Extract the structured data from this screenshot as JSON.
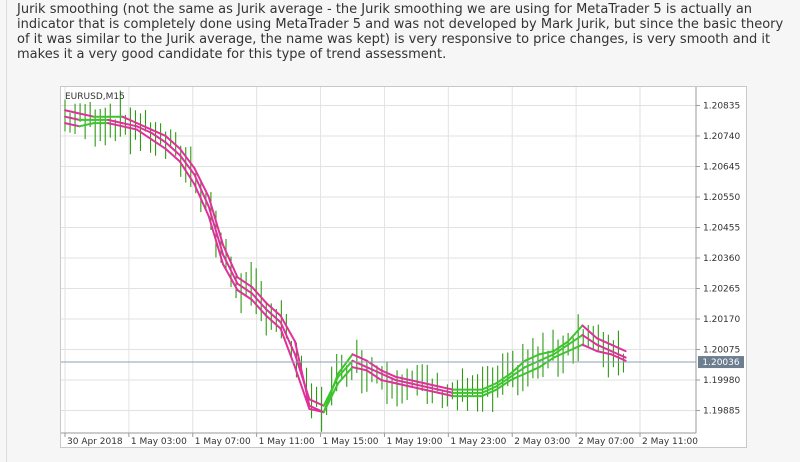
{
  "article": {
    "paragraph": "Jurik smoothing (not the same as Jurik average - the Jurik smoothing we are using for MetaTrader 5 is actually an indicator that is completely done using MetaTrader 5 and was not developed by Mark Jurik, but since the basic theory of it was similar to the Jurik average, the name was kept) is very responsive to price changes, is very smooth and it makes it a very good candidate for this type of trend assessment."
  },
  "chart_data": {
    "type": "line",
    "title": "EURUSD,M15",
    "price_axis": {
      "ticks": [
        "1.20835",
        "1.20740",
        "1.20645",
        "1.20550",
        "1.20455",
        "1.20360",
        "1.20265",
        "1.20170",
        "1.20075",
        "1.19980",
        "1.19885"
      ],
      "ylim": [
        1.1984,
        1.2088
      ]
    },
    "time_axis": {
      "ticks": [
        "30 Apr 2018",
        "1 May 03:00",
        "1 May 07:00",
        "1 May 11:00",
        "1 May 15:00",
        "1 May 19:00",
        "1 May 23:00",
        "2 May 03:00",
        "2 May 07:00",
        "2 May 11:00"
      ]
    },
    "current_price": "1.20036",
    "colors": {
      "bars": "#2e9a14",
      "band_up": "#e0309a",
      "band_down": "#3dc42e",
      "current_line": "#8fa0b0",
      "price_box": "#6c7e90",
      "grid": "#e2e2e2"
    },
    "series": [
      {
        "x": [
          0,
          4,
          8,
          12,
          16,
          20,
          24,
          28,
          32,
          36,
          40,
          44,
          48,
          52,
          56,
          60,
          64,
          68,
          72,
          76,
          80,
          84,
          88,
          92,
          96,
          100,
          104,
          108,
          112,
          116,
          120,
          124,
          128,
          132,
          136,
          140,
          144,
          148,
          152,
          156
        ],
        "y": [
          1.2082,
          1.2081,
          1.208,
          1.208,
          1.208,
          1.2078,
          1.2076,
          1.2074,
          1.207,
          1.2064,
          1.2055,
          1.204,
          1.203,
          1.2027,
          1.2022,
          1.2018,
          1.201,
          1.199,
          1.1988,
          1.2,
          1.2006,
          1.2004,
          1.2001,
          1.1999,
          1.1998,
          1.1997,
          1.1996,
          1.1995,
          1.1995,
          1.1995,
          1.1997,
          1.2,
          1.2004,
          1.2006,
          1.2007,
          1.201,
          1.2015,
          1.2011,
          1.2009,
          1.2007
        ]
      },
      {
        "x": [
          0,
          4,
          8,
          12,
          16,
          20,
          24,
          28,
          32,
          36,
          40,
          44,
          48,
          52,
          56,
          60,
          64,
          68,
          72,
          76,
          80,
          84,
          88,
          92,
          96,
          100,
          104,
          108,
          112,
          116,
          120,
          124,
          128,
          132,
          136,
          140,
          144,
          148,
          152,
          156
        ],
        "y": [
          1.208,
          1.2079,
          1.2079,
          1.2079,
          1.2078,
          1.2077,
          1.2075,
          1.2072,
          1.2068,
          1.2062,
          1.2052,
          1.2037,
          1.2028,
          1.2025,
          1.202,
          1.2016,
          1.2006,
          1.1992,
          1.199,
          1.1999,
          1.2004,
          1.2002,
          1.2,
          1.1998,
          1.1997,
          1.1996,
          1.1995,
          1.1994,
          1.1994,
          1.1994,
          1.1996,
          1.1999,
          1.2002,
          1.2004,
          1.2006,
          1.2009,
          1.2012,
          1.2009,
          1.2007,
          1.2005
        ]
      },
      {
        "x": [
          0,
          4,
          8,
          12,
          16,
          20,
          24,
          28,
          32,
          36,
          40,
          44,
          48,
          52,
          56,
          60,
          64,
          68,
          72,
          76,
          80,
          84,
          88,
          92,
          96,
          100,
          104,
          108,
          112,
          116,
          120,
          124,
          128,
          132,
          136,
          140,
          144,
          148,
          152,
          156
        ],
        "y": [
          1.2078,
          1.2077,
          1.2078,
          1.2078,
          1.2077,
          1.2076,
          1.2073,
          1.207,
          1.2066,
          1.2059,
          1.2049,
          1.2034,
          1.2026,
          1.2023,
          1.2018,
          1.2014,
          1.2002,
          1.1989,
          1.1988,
          1.1997,
          1.2002,
          1.2001,
          1.1998,
          1.1997,
          1.1996,
          1.1995,
          1.1994,
          1.1993,
          1.1993,
          1.1993,
          1.1995,
          1.1998,
          1.2,
          1.2002,
          1.2005,
          1.2007,
          1.2009,
          1.2007,
          1.2006,
          1.2004
        ]
      }
    ]
  }
}
